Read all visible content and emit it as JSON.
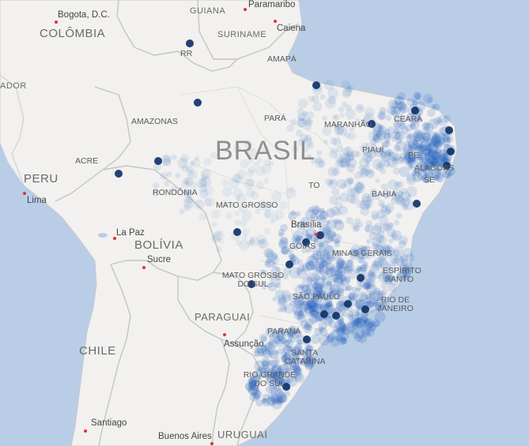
{
  "map": {
    "country_main": "BRASIL",
    "countries": [
      "COLÔMBIA",
      "PERU",
      "BOLÍVIA",
      "PARAGUAI",
      "CHILE",
      "URUGUAI",
      "GUIANA",
      "SURINAME",
      "ADOR"
    ],
    "states": [
      "RR",
      "AMAPÁ",
      "AMAZONAS",
      "PARÁ",
      "MARANHÃO",
      "CEARÁ",
      "PIAUÍ",
      "PE",
      "ALAGOAS",
      "SE",
      "ACRE",
      "RONDÔNIA",
      "TO",
      "BAHIA",
      "MATO GROSSO",
      "GOIÁS",
      "MINAS GERAIS",
      "ESPÍRITO SANTO",
      "MATO GROSSO DO SUL",
      "SÃO PAULO",
      "RIO DE JANEIRO",
      "PARANÁ",
      "SANTA CATARINA",
      "RIO GRANDE DO SUL",
      "PARÁ"
    ],
    "cities": [
      "Bogota, D.C.",
      "Paramaribo",
      "Caiena",
      "Lima",
      "La Paz",
      "Sucre",
      "Brasília",
      "Assunção",
      "Santiago",
      "Buenos Aires"
    ],
    "colors": {
      "ocean": "#b9cde6",
      "land": "#f2f1ef",
      "border": "#c9c9c9",
      "density": "#0b3a78"
    }
  }
}
